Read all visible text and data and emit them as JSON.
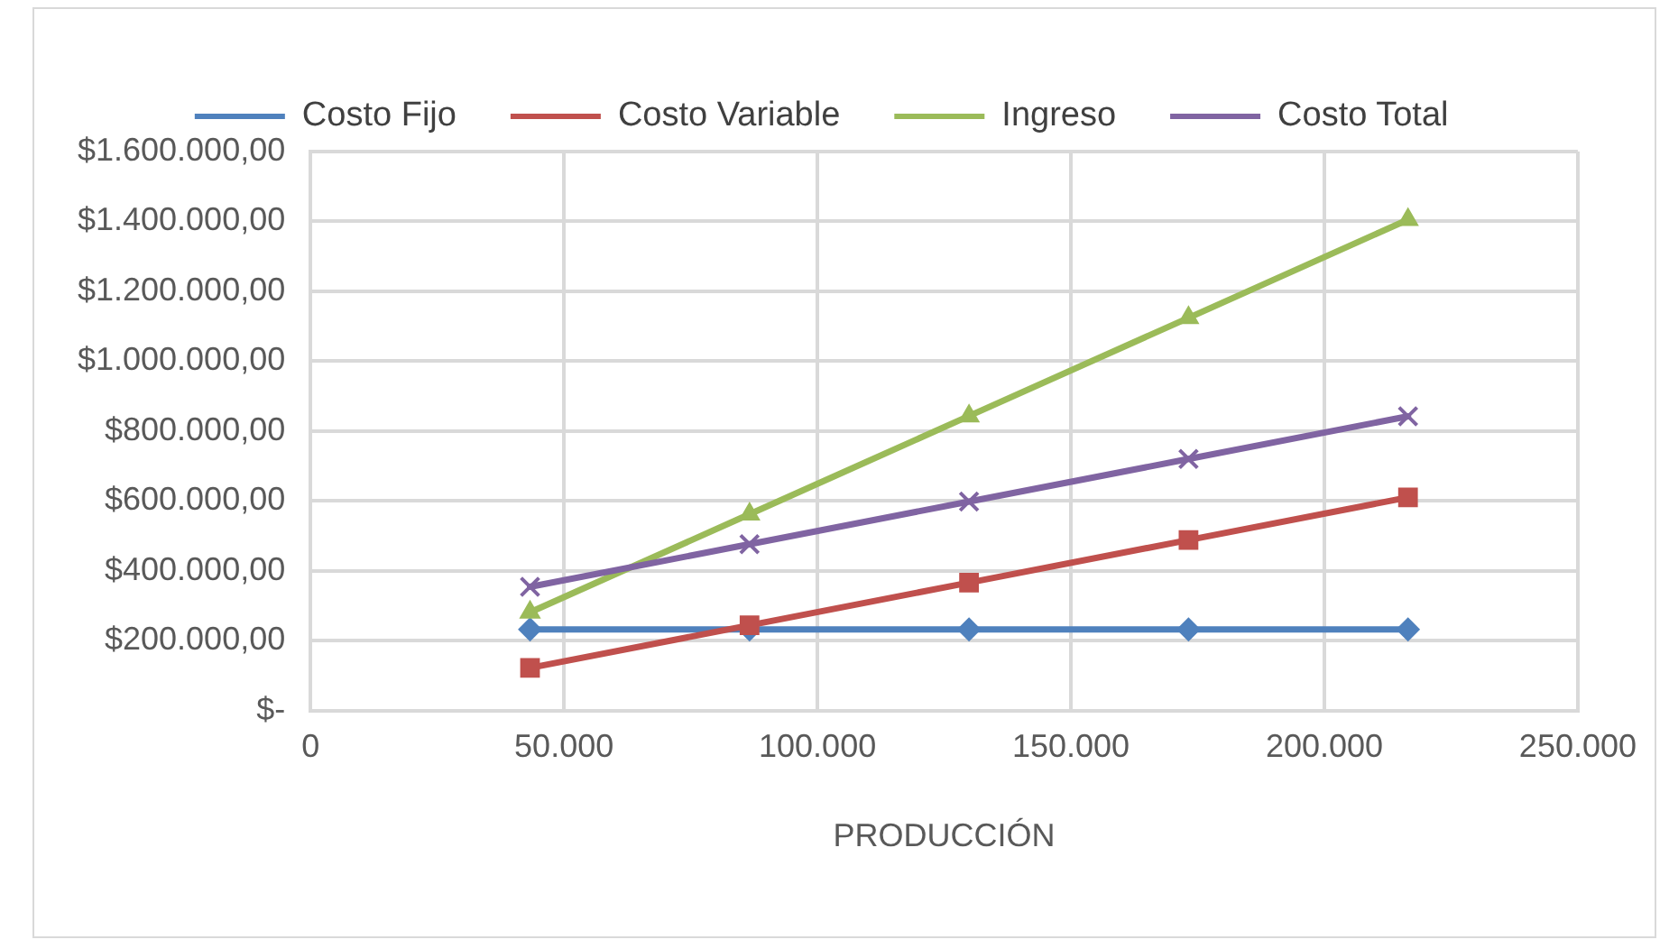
{
  "chart_data": {
    "type": "line",
    "xlabel": "PRODUCCIÓN",
    "x": [
      43300,
      86600,
      129900,
      173200,
      216500
    ],
    "series": [
      {
        "name": "Costo Fijo",
        "color": "#4f81bd",
        "marker": "diamond",
        "values": [
          232000,
          232000,
          232000,
          232000,
          232000
        ]
      },
      {
        "name": "Costo Variable",
        "color": "#c0504d",
        "marker": "square",
        "values": [
          122000,
          244000,
          366000,
          488000,
          610000
        ]
      },
      {
        "name": "Ingreso",
        "color": "#9bbb59",
        "marker": "triangle",
        "values": [
          281000,
          562000,
          843000,
          1124000,
          1405000
        ]
      },
      {
        "name": "Costo Total",
        "color": "#8064a2",
        "marker": "cross",
        "values": [
          354000,
          476000,
          598000,
          720000,
          842000
        ]
      }
    ],
    "xlim": [
      0,
      250000
    ],
    "xticks": [
      {
        "value": 0,
        "label": "0"
      },
      {
        "value": 50000,
        "label": "50.000"
      },
      {
        "value": 100000,
        "label": "100.000"
      },
      {
        "value": 150000,
        "label": "150.000"
      },
      {
        "value": 200000,
        "label": "200.000"
      },
      {
        "value": 250000,
        "label": "250.000"
      }
    ],
    "ylim": [
      0,
      1600000
    ],
    "yticks": [
      {
        "value": 0,
        "label": "$-"
      },
      {
        "value": 200000,
        "label": "$200.000,00"
      },
      {
        "value": 400000,
        "label": "$400.000,00"
      },
      {
        "value": 600000,
        "label": "$600.000,00"
      },
      {
        "value": 800000,
        "label": "$800.000,00"
      },
      {
        "value": 1000000,
        "label": "$1.000.000,00"
      },
      {
        "value": 1200000,
        "label": "$1.200.000,00"
      },
      {
        "value": 1400000,
        "label": "$1.400.000,00"
      },
      {
        "value": 1600000,
        "label": "$1.600.000,00"
      }
    ],
    "grid": true,
    "legend": "top",
    "line_style": "solid"
  }
}
